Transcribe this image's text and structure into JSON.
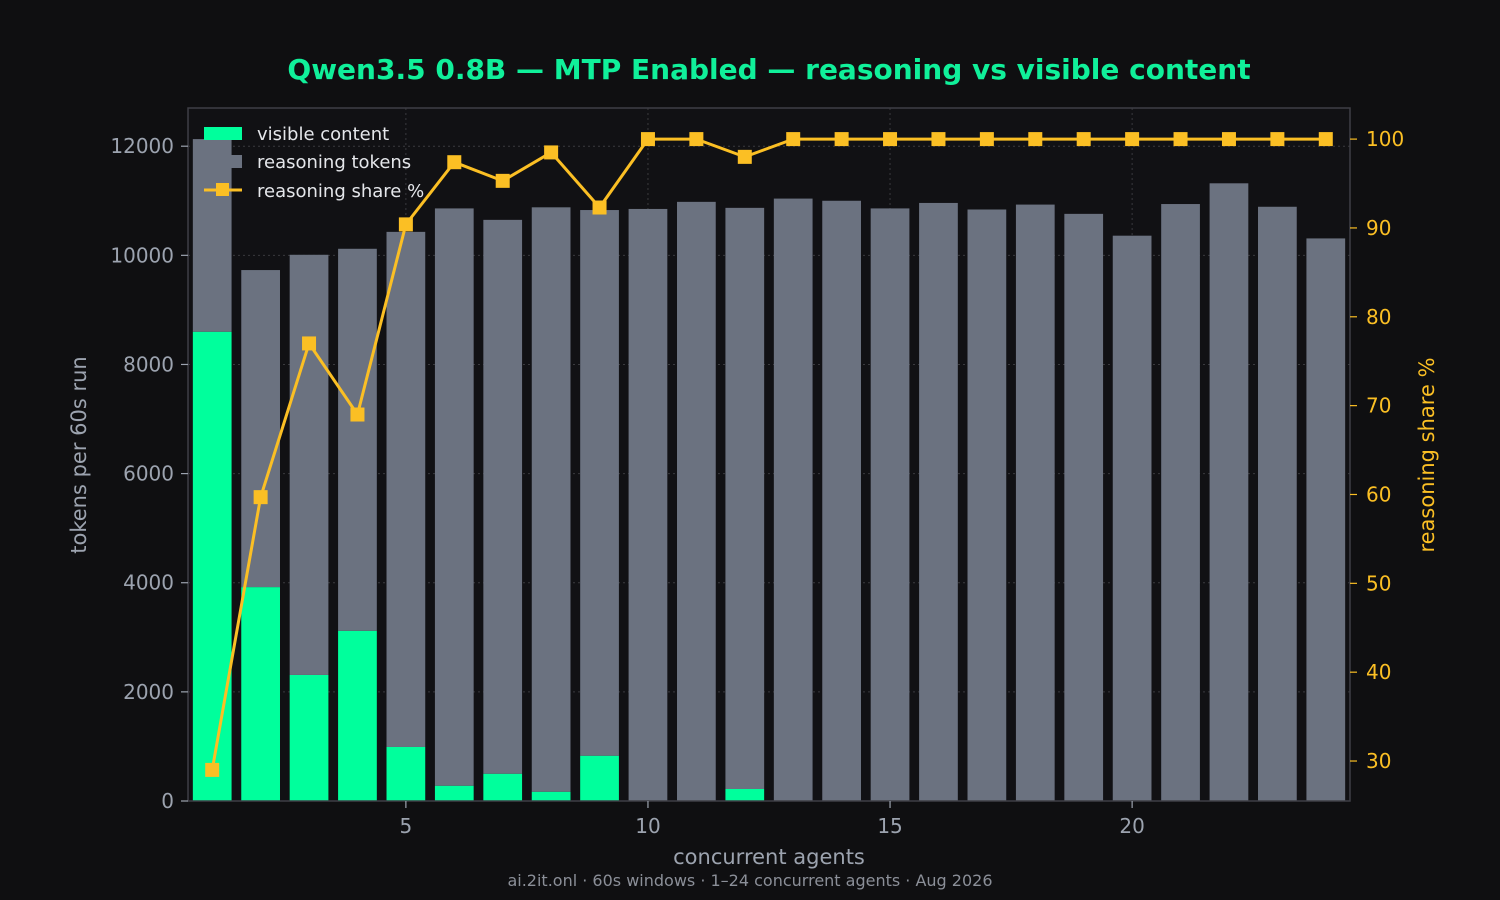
{
  "chart_data": {
    "type": "bar",
    "title": "Qwen3.5 0.8B — MTP Enabled — reasoning vs visible content",
    "xlabel": "concurrent agents",
    "ylabel": "tokens per 60s run",
    "y2label": "reasoning share %",
    "footer": "ai.2it.onl · 60s windows · 1–24 concurrent agents · Aug 2026",
    "x": [
      1,
      2,
      3,
      4,
      5,
      6,
      7,
      8,
      9,
      10,
      11,
      12,
      13,
      14,
      15,
      16,
      17,
      18,
      19,
      20,
      21,
      22,
      23,
      24
    ],
    "xticks": [
      5,
      10,
      15,
      20
    ],
    "xlim": [
      0.5,
      24.5
    ],
    "ylim": [
      0,
      12700
    ],
    "yticks": [
      0,
      2000,
      4000,
      6000,
      8000,
      10000,
      12000
    ],
    "y2lim": [
      25.5,
      103.5
    ],
    "y2ticks": [
      30,
      40,
      50,
      60,
      70,
      80,
      90,
      100
    ],
    "stacked": true,
    "grid": true,
    "legend_position": "top-left",
    "series": [
      {
        "name": "visible content",
        "kind": "bar",
        "color": "#00ff9c",
        "values": [
          8600,
          3920,
          2310,
          3120,
          990,
          280,
          500,
          170,
          830,
          0,
          0,
          220,
          0,
          0,
          0,
          0,
          0,
          0,
          0,
          0,
          0,
          0,
          0,
          0
        ]
      },
      {
        "name": "reasoning tokens",
        "kind": "bar",
        "color": "#6b7280",
        "values": [
          3530,
          5810,
          7700,
          7000,
          9440,
          10580,
          10150,
          10710,
          10000,
          10850,
          10980,
          10650,
          11040,
          11000,
          10860,
          10960,
          10840,
          10930,
          10760,
          10360,
          10940,
          11320,
          10890,
          10310
        ]
      },
      {
        "name": "reasoning share %",
        "kind": "line",
        "axis": "right",
        "color": "#fbbf24",
        "values": [
          29,
          59.7,
          77,
          69,
          90.4,
          97.4,
          95.3,
          98.5,
          92.3,
          100,
          100,
          98,
          100,
          100,
          100,
          100,
          100,
          100,
          100,
          100,
          100,
          100,
          100,
          100
        ]
      }
    ]
  },
  "colors": {
    "background": "#0f0f11",
    "plot_background": "#111114",
    "title": "#10f09a",
    "axis_text": "#9ca3af",
    "right_axis": "#fbbf24",
    "grid": "#3a3a3e",
    "frame": "#3f3f46",
    "legend_text": "#e5e7eb"
  }
}
